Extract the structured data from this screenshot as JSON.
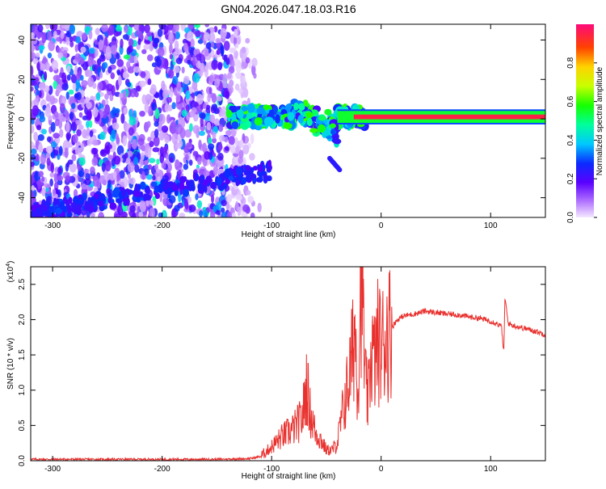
{
  "title": "GN04.2026.047.18.03.R16",
  "chart_data": [
    {
      "type": "heatmap",
      "xlabel": "Height of straight line (km)",
      "ylabel": "Frequency (Hz)",
      "xlim": [
        -320,
        150
      ],
      "ylim": [
        -50,
        48
      ],
      "x_ticks": [
        -300,
        -200,
        -100,
        0,
        100
      ],
      "y_ticks": [
        -40,
        -20,
        0,
        20,
        40
      ],
      "colorbar": {
        "label": "Normalized spectral amplitude",
        "range": [
          0,
          1
        ],
        "ticks": [
          0.0,
          0.2,
          0.4,
          0.6,
          0.8
        ]
      },
      "features": [
        {
          "x_range": [
            -320,
            -140
          ],
          "freq_range": [
            -50,
            48
          ],
          "amplitude": 0.15
        },
        {
          "x_range": [
            -140,
            -40
          ],
          "freq_center": 1,
          "amplitude": 0.45
        },
        {
          "x_range": [
            -40,
            150
          ],
          "freq_center": 1,
          "amplitude": 0.95
        }
      ]
    },
    {
      "type": "line",
      "xlabel": "Height of straight line (km)",
      "ylabel": "SNR (10 * v/v)",
      "scale_label": "(x10",
      "scale_exp": "4",
      "xlim": [
        -320,
        150
      ],
      "ylim": [
        0,
        2.75
      ],
      "x_ticks": [
        -300,
        -200,
        -100,
        0,
        100
      ],
      "y_ticks": [
        0.0,
        0.5,
        1.0,
        1.5,
        2.0,
        2.5
      ],
      "color": "#e8312e",
      "series": [
        {
          "name": "SNR",
          "x": [
            -320,
            -150,
            -120,
            -110,
            -100,
            -90,
            -80,
            -72,
            -68,
            -65,
            -60,
            -55,
            -50,
            -45,
            -40,
            -35,
            -30,
            -27,
            -24,
            -21,
            -19,
            -17,
            -15,
            -12,
            -9,
            -6,
            -3,
            0,
            5,
            10,
            15,
            20,
            30,
            40,
            50,
            60,
            70,
            80,
            90,
            100,
            105,
            110,
            112,
            113,
            114,
            116,
            120,
            130,
            140,
            150
          ],
          "y": [
            0.02,
            0.02,
            0.03,
            0.06,
            0.2,
            0.35,
            0.45,
            0.6,
            1.1,
            0.7,
            0.4,
            0.3,
            0.15,
            0.15,
            0.25,
            0.7,
            1.1,
            1.4,
            1.9,
            1.0,
            2.5,
            2.7,
            1.2,
            0.8,
            1.6,
            1.4,
            1.7,
            1.6,
            1.8,
            1.9,
            2.0,
            2.05,
            2.08,
            2.12,
            2.1,
            2.08,
            2.07,
            2.04,
            2.02,
            1.98,
            1.95,
            1.9,
            1.5,
            2.3,
            2.2,
            1.95,
            1.92,
            1.88,
            1.84,
            1.79
          ]
        }
      ]
    }
  ]
}
